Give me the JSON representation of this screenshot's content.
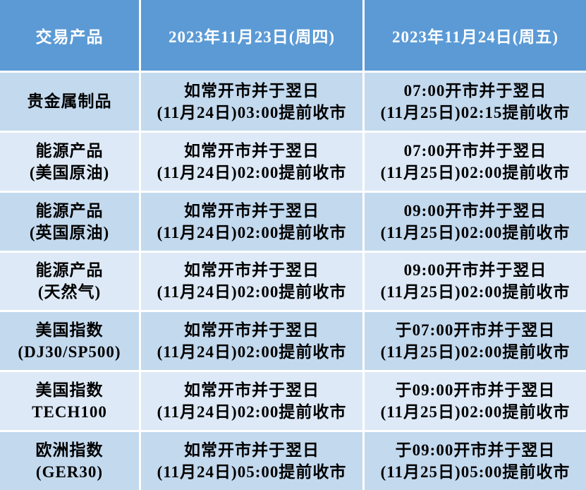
{
  "colors": {
    "header_bg": "#5b9ad5",
    "header_text": "#ffffff",
    "row_odd_bg": "#c3d9ee",
    "row_even_bg": "#dde9f6",
    "cell_text": "#000000",
    "separator": "#ffffff"
  },
  "table": {
    "headers": [
      {
        "label": "交易产品"
      },
      {
        "label": "2023年11月23日(周四)"
      },
      {
        "label": "2023年11月24日(周五)"
      }
    ],
    "rows": [
      {
        "product": [
          "贵金属制品"
        ],
        "thursday": [
          "如常开市并于翌日",
          "(11月24日)03:00提前收市"
        ],
        "friday": [
          "07:00开市并于翌日",
          "(11月25日)02:15提前收市"
        ]
      },
      {
        "product": [
          "能源产品",
          "(美国原油)"
        ],
        "thursday": [
          "如常开市并于翌日",
          "(11月24日)02:00提前收市"
        ],
        "friday": [
          "07:00开市并于翌日",
          "(11月25日)02:00提前收市"
        ]
      },
      {
        "product": [
          "能源产品",
          "(英国原油)"
        ],
        "thursday": [
          "如常开市并于翌日",
          "(11月24日)02:00提前收市"
        ],
        "friday": [
          "09:00开市并于翌日",
          "(11月25日)02:00提前收市"
        ]
      },
      {
        "product": [
          "能源产品",
          "(天然气)"
        ],
        "thursday": [
          "如常开市并于翌日",
          "(11月24日)02:00提前收市"
        ],
        "friday": [
          "09:00开市并于翌日",
          "(11月25日)02:00提前收市"
        ]
      },
      {
        "product": [
          "美国指数",
          "(DJ30/SP500)"
        ],
        "thursday": [
          "如常开市并于翌日",
          "(11月24日)02:00提前收市"
        ],
        "friday": [
          "于07:00开市并于翌日",
          "(11月25日)02:00提前收市"
        ]
      },
      {
        "product": [
          "美国指数",
          "TECH100"
        ],
        "thursday": [
          "如常开市并于翌日",
          "(11月24日)02:00提前收市"
        ],
        "friday": [
          "于09:00开市并于翌日",
          "(11月25日)02:00提前收市"
        ]
      },
      {
        "product": [
          "欧洲指数",
          "(GER30)"
        ],
        "thursday": [
          "如常开市并于翌日",
          "(11月24日)05:00提前收市"
        ],
        "friday": [
          "于09:00开市并于翌日",
          "(11月25日)05:00提前收市"
        ]
      }
    ]
  }
}
